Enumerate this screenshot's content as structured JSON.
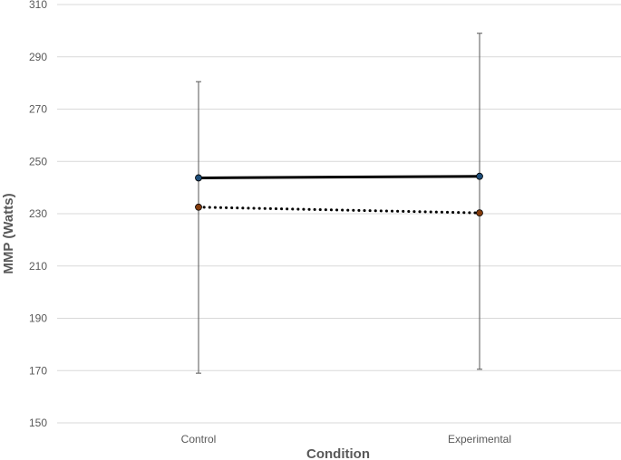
{
  "chart_data": {
    "type": "line",
    "title": "",
    "xlabel": "Condition",
    "ylabel": "MMP (Watts)",
    "categories": [
      "Control",
      "Experimental"
    ],
    "ylim": [
      150,
      310
    ],
    "yticks": [
      150,
      170,
      190,
      210,
      230,
      250,
      270,
      290,
      310
    ],
    "grid": true,
    "legend": "none",
    "series": [
      {
        "values": [
          243.7,
          244.3
        ],
        "error_low": [
          169,
          170.5
        ],
        "error_high": [
          280.5,
          299
        ],
        "line_style": "solid",
        "line_color": "#000000",
        "marker_color": "#1f4e79"
      },
      {
        "values": [
          232.5,
          230.3
        ],
        "error_low": [],
        "error_high": [],
        "line_style": "dotted",
        "line_color": "#000000",
        "marker_color": "#843c0c"
      }
    ]
  }
}
